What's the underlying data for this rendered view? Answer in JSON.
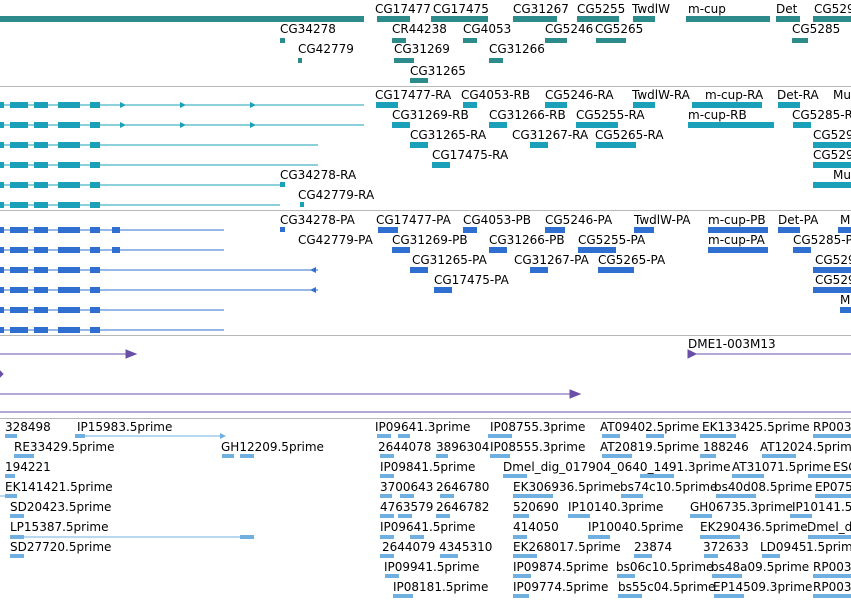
{
  "colors": {
    "gene": "#2e8b8b",
    "mrna": "#1aa0b8",
    "protein": "#2f6fd0",
    "bac": "#6a4fa8",
    "est": "#6fb0e0",
    "separator": "#b8b8b8"
  },
  "tracks": {
    "gene": {
      "labels": [
        "CG34278",
        "CG17477",
        "CG17475",
        "CG31267",
        "CG5255",
        "TwdlW",
        "m-cup",
        "Det",
        "CG529",
        "CG42779",
        "CR44238",
        "CG4053",
        "CG5246",
        "CG5265",
        "CG5285",
        "CG31269",
        "CG31266",
        "CG31265"
      ]
    },
    "mrna": {
      "labels": [
        "CG17477-RA",
        "CG4053-RB",
        "CG5246-RA",
        "TwdlW-RA",
        "m-cup-RA",
        "Det-RA",
        "Mu",
        "CG31269-RB",
        "CG31266-RB",
        "CG5255-RA",
        "m-cup-RB",
        "CG5285-R",
        "CG31265-RA",
        "CG31267-RA",
        "CG5265-RA",
        "CG529",
        "CG17475-RA",
        "CG529",
        "Mu",
        "CG34278-RA",
        "CG42779-RA"
      ]
    },
    "protein": {
      "labels": [
        "CG34278-PA",
        "CG17477-PA",
        "CG4053-PB",
        "CG5246-PA",
        "TwdlW-PA",
        "m-cup-PB",
        "Det-PA",
        "M",
        "CG42779-PA",
        "CG31269-PB",
        "CG31266-PB",
        "CG5255-PA",
        "m-cup-PA",
        "CG5285-P",
        "CG31265-PA",
        "CG31267-PA",
        "CG5265-PA",
        "CG529",
        "CG17475-PA",
        "CG529",
        "M"
      ]
    },
    "bac": {
      "labels": [
        "DME1-003M13"
      ]
    },
    "est": {
      "labels": [
        "328498",
        "IP15983.5prime",
        "IP09641.3prime",
        "IP08755.3prime",
        "AT09402.5prime",
        "EK133425.5prime",
        "RP003",
        "RE33429.5prime",
        "GH12209.5prime",
        "2644078",
        "3896304",
        "IP08555.3prime",
        "AT20819.5prime",
        "188246",
        "AT12024.5prime",
        "194221",
        "IP09841.5prime",
        "Dmel_dig_017904_0640_1491.3prime",
        "AT31071.5prime",
        "ESG",
        "EK141421.5prime",
        "3700643",
        "2646780",
        "EK306936.5prime",
        "bs74c10.5prime",
        "bs40d08.5prime",
        "EP075",
        "SD20423.5prime",
        "4763579",
        "2646782",
        "520690",
        "IP10140.3prime",
        "GH06735.3prime",
        "IP10141.5",
        "LP15387.5prime",
        "IP09641.5prime",
        "414050",
        "IP10040.5prime",
        "EK290436.5prime",
        "Dmel_d",
        "SD27720.5prime",
        "2644079",
        "4345310",
        "EK268017.5prime",
        "23874",
        "372633",
        "LD0945",
        "1.5prim",
        "IP09941.5prime",
        "IP09874.5prime",
        "bs06c10.5prime",
        "bs48a09.5prime",
        "RP003",
        "IP08181.5prime",
        "IP09774.5prime",
        "bs55c04.5prime",
        "EP14509.3prime",
        "RP003"
      ]
    }
  }
}
